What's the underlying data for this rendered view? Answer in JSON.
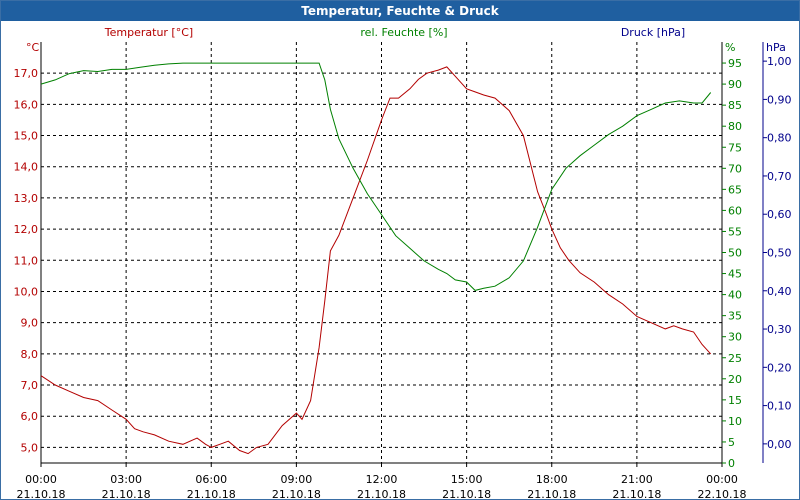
{
  "window": {
    "title": "Temperatur, Feuchte & Druck"
  },
  "colors": {
    "temperature": "#b30000",
    "humidity": "#008000",
    "pressure": "#00008b",
    "grid": "#000000",
    "titlebar": "#1f5fa0"
  },
  "chart_data": {
    "type": "line",
    "title": "Temperatur, Feuchte & Druck",
    "grid": true,
    "x_ticks": [
      {
        "time": "00:00",
        "date": "21.10.18"
      },
      {
        "time": "03:00",
        "date": "21.10.18"
      },
      {
        "time": "06:00",
        "date": "21.10.18"
      },
      {
        "time": "09:00",
        "date": "21.10.18"
      },
      {
        "time": "12:00",
        "date": "21.10.18"
      },
      {
        "time": "15:00",
        "date": "21.10.18"
      },
      {
        "time": "18:00",
        "date": "21.10.18"
      },
      {
        "time": "21:00",
        "date": "21.10.18"
      },
      {
        "time": "00:00",
        "date": "22.10.18"
      }
    ],
    "x_range_hours": [
      0,
      24
    ],
    "axes": {
      "temperature": {
        "label": "Temperatur [°C]",
        "unit": "°C",
        "ylim": [
          4.5,
          18.0
        ],
        "ticks": [
          "5,0",
          "6,0",
          "7,0",
          "8,0",
          "9,0",
          "10,0",
          "11,0",
          "12,0",
          "13,0",
          "14,0",
          "15,0",
          "16,0",
          "17,0"
        ]
      },
      "humidity": {
        "label": "rel. Feuchte [%]",
        "unit": "%",
        "ylim": [
          0,
          100
        ],
        "ticks": [
          "0",
          "5",
          "10",
          "15",
          "20",
          "25",
          "30",
          "35",
          "40",
          "45",
          "50",
          "55",
          "60",
          "65",
          "70",
          "75",
          "80",
          "85",
          "90",
          "95"
        ]
      },
      "pressure": {
        "label": "Druck [hPa]",
        "unit": "hPa",
        "ylim": [
          -0.05,
          1.05
        ],
        "ticks": [
          "0,00",
          "0,10",
          "0,20",
          "0,30",
          "0,40",
          "0,50",
          "0,60",
          "0,70",
          "0,80",
          "0,90",
          "1,00"
        ]
      }
    },
    "series": [
      {
        "name": "Temperatur [°C]",
        "axis": "temperature",
        "x": [
          0,
          0.5,
          1,
          1.5,
          2,
          2.5,
          3,
          3.3,
          3.6,
          4,
          4.5,
          5,
          5.5,
          5.8,
          6,
          6.3,
          6.6,
          7,
          7.3,
          7.6,
          8,
          8.5,
          9,
          9.2,
          9.5,
          9.8,
          10,
          10.2,
          10.5,
          11,
          11.5,
          12,
          12.3,
          12.6,
          13,
          13.3,
          13.6,
          14,
          14.3,
          14.6,
          15,
          15.3,
          15.6,
          16,
          16.5,
          17,
          17.5,
          17.8,
          18,
          18.3,
          18.6,
          19,
          19.5,
          20,
          20.5,
          21,
          21.5,
          22,
          22.3,
          22.6,
          23,
          23.3,
          23.6
        ],
        "y": [
          7.3,
          7.0,
          6.8,
          6.6,
          6.5,
          6.2,
          5.9,
          5.6,
          5.5,
          5.4,
          5.2,
          5.1,
          5.3,
          5.1,
          5.0,
          5.1,
          5.2,
          4.9,
          4.8,
          5.0,
          5.1,
          5.7,
          6.1,
          5.9,
          6.5,
          8.2,
          9.7,
          11.3,
          11.8,
          13.0,
          14.2,
          15.5,
          16.2,
          16.2,
          16.5,
          16.8,
          17.0,
          17.1,
          17.2,
          16.9,
          16.5,
          16.4,
          16.3,
          16.2,
          15.8,
          15.0,
          13.2,
          12.5,
          12.0,
          11.4,
          11.0,
          10.6,
          10.3,
          9.9,
          9.6,
          9.2,
          9.0,
          8.8,
          8.9,
          8.8,
          8.7,
          8.3,
          8.0
        ]
      },
      {
        "name": "rel. Feuchte [%]",
        "axis": "humidity",
        "x": [
          0,
          0.5,
          1,
          1.5,
          2,
          2.5,
          3,
          3.5,
          4,
          4.5,
          5,
          6,
          7,
          8,
          9,
          9.5,
          9.8,
          10,
          10.2,
          10.5,
          11,
          11.5,
          12,
          12.5,
          13,
          13.5,
          14,
          14.3,
          14.6,
          15,
          15.3,
          15.6,
          16,
          16.5,
          17,
          17.5,
          18,
          18.5,
          19,
          19.5,
          20,
          20.5,
          21,
          21.5,
          22,
          22.5,
          23,
          23.3,
          23.6
        ],
        "y": [
          90.0,
          91.0,
          92.5,
          93.2,
          93.0,
          93.5,
          93.5,
          94.0,
          94.5,
          94.8,
          95.0,
          95.0,
          95.0,
          95.0,
          95.0,
          95.0,
          95.0,
          91.0,
          84.0,
          77.0,
          70.0,
          64.0,
          59.0,
          54.0,
          51.0,
          48.0,
          46.0,
          45.0,
          43.5,
          43.0,
          41.0,
          41.5,
          42.0,
          44.0,
          48.0,
          56.0,
          65.0,
          70.0,
          73.0,
          75.5,
          78.0,
          80.0,
          82.5,
          84.0,
          85.5,
          86.0,
          85.5,
          85.5,
          88.0
        ]
      }
    ]
  }
}
